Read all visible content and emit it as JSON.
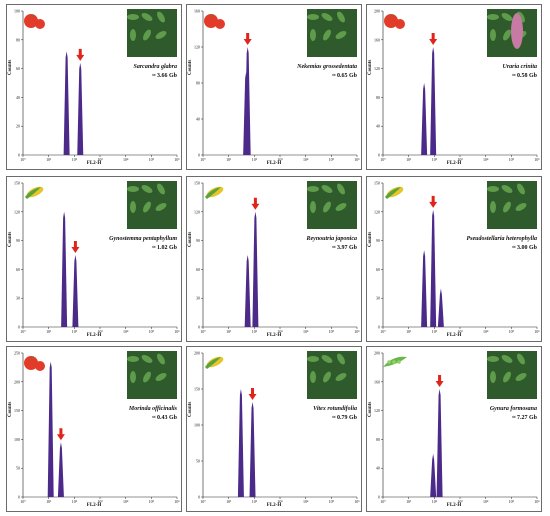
{
  "figure": {
    "panels": [
      {
        "species": "Sarcandra glabra",
        "size": "≈ 3.66 Gb",
        "crop_icon": "tomato-icon",
        "photo_icon": "leafy-plant-photo-icon",
        "y_ticks": [
          "0",
          "20",
          "40",
          "60",
          "80",
          "100"
        ],
        "x_ticks": [
          "10⁰",
          "10¹",
          "10²",
          "10³",
          "10⁴",
          "10⁵",
          "10⁶"
        ],
        "xlabel": "FL2-H",
        "ylabel": "Counts"
      },
      {
        "species": "Nekemias grossedentata",
        "size": "≈ 0.65 Gb",
        "crop_icon": "tomato-icon",
        "photo_icon": "leafy-plant-photo-icon",
        "y_ticks": [
          "0",
          "40",
          "80",
          "120",
          "160"
        ],
        "x_ticks": [
          "10⁰",
          "10¹",
          "10²",
          "10³",
          "10⁴",
          "10⁵",
          "10⁶"
        ],
        "xlabel": "FL2-H",
        "ylabel": "Counts"
      },
      {
        "species": "Uraria crinita",
        "size": "≈ 0.58 Gb",
        "crop_icon": "tomato-icon",
        "photo_icon": "flower-spike-photo-icon",
        "y_ticks": [
          "0",
          "40",
          "80",
          "120",
          "160",
          "200"
        ],
        "x_ticks": [
          "10⁰",
          "10¹",
          "10²",
          "10³",
          "10⁴",
          "10⁵",
          "10⁶"
        ],
        "xlabel": "FL2-H",
        "ylabel": "Counts"
      },
      {
        "species": "Gynostemma pentaphyllum",
        "size": "≈ 1.02 Gb",
        "crop_icon": "maize-icon",
        "photo_icon": "leafy-plant-photo-icon",
        "y_ticks": [
          "0",
          "30",
          "60",
          "90",
          "120",
          "150"
        ],
        "x_ticks": [
          "10⁰",
          "10¹",
          "10²",
          "10³",
          "10⁴",
          "10⁵",
          "10⁶"
        ],
        "xlabel": "FL2-H",
        "ylabel": "Counts"
      },
      {
        "species": "Reynoutria japonica",
        "size": "≈ 3.97 Gb",
        "crop_icon": "maize-icon",
        "photo_icon": "leafy-plant-photo-icon",
        "y_ticks": [
          "0",
          "30",
          "60",
          "90",
          "120",
          "150"
        ],
        "x_ticks": [
          "10⁰",
          "10¹",
          "10²",
          "10³",
          "10⁴",
          "10⁵",
          "10⁶"
        ],
        "xlabel": "FL2-H",
        "ylabel": "Counts"
      },
      {
        "species": "Pseudostellaria heterophylla",
        "size": "≈ 3.00 Gb",
        "crop_icon": "maize-icon",
        "photo_icon": "leafy-plant-photo-icon",
        "y_ticks": [
          "0",
          "30",
          "60",
          "90",
          "120",
          "150"
        ],
        "x_ticks": [
          "10⁰",
          "10¹",
          "10²",
          "10³",
          "10⁴",
          "10⁵",
          "10⁶"
        ],
        "xlabel": "FL2-H",
        "ylabel": "Counts"
      },
      {
        "species": "Morinda officinalis",
        "size": "≈ 0.43 Gb",
        "crop_icon": "tomato-icon",
        "photo_icon": "leafy-plant-photo-icon",
        "y_ticks": [
          "0",
          "50",
          "100",
          "150",
          "200",
          "250"
        ],
        "x_ticks": [
          "10⁰",
          "10¹",
          "10²",
          "10³",
          "10⁴",
          "10⁵",
          "10⁶"
        ],
        "xlabel": "FL2-H",
        "ylabel": "Counts"
      },
      {
        "species": "Vitex rotundifolia",
        "size": "≈ 0.79 Gb",
        "crop_icon": "maize-icon",
        "photo_icon": "leafy-plant-photo-icon",
        "y_ticks": [
          "0",
          "50",
          "100",
          "150",
          "200"
        ],
        "x_ticks": [
          "10⁰",
          "10¹",
          "10²",
          "10³",
          "10⁴",
          "10⁵",
          "10⁶"
        ],
        "xlabel": "FL2-H",
        "ylabel": "Counts"
      },
      {
        "species": "Gynura formosana",
        "size": "≈ 7.27 Gb",
        "crop_icon": "pea-pod-icon",
        "photo_icon": "leafy-plant-photo-icon",
        "y_ticks": [
          "0",
          "40",
          "80",
          "120",
          "160",
          "200"
        ],
        "x_ticks": [
          "10⁰",
          "10¹",
          "10²",
          "10³",
          "10⁴",
          "10⁵",
          "10⁶"
        ],
        "xlabel": "FL2-H",
        "ylabel": "Counts"
      }
    ],
    "colors": {
      "histogram": "#4b2a8a",
      "arrow": "#e0241b",
      "tomato": "#e23b2a",
      "maize": "#e7c62c",
      "pea": "#6bb64a"
    }
  },
  "chart_data": [
    {
      "type": "histogram",
      "title": "",
      "xlabel": "FL2-H",
      "ylabel": "Counts",
      "x_scale": "log",
      "xlim": [
        1,
        1000000
      ],
      "ylim": [
        0,
        100
      ],
      "peaks": [
        {
          "x": 50,
          "count": 72,
          "role": "reference"
        },
        {
          "x": 170,
          "count": 64,
          "role": "sample",
          "arrow": true
        }
      ]
    },
    {
      "type": "histogram",
      "title": "",
      "xlabel": "FL2-H",
      "ylabel": "Counts",
      "x_scale": "log",
      "xlim": [
        1,
        1000000
      ],
      "ylim": [
        0,
        160
      ],
      "peaks": [
        {
          "x": 55,
          "count": 120,
          "role": "sample",
          "arrow": true
        },
        {
          "x": 48,
          "count": 92,
          "role": "sample"
        }
      ]
    },
    {
      "type": "histogram",
      "title": "",
      "xlabel": "FL2-H",
      "ylabel": "Counts",
      "x_scale": "log",
      "xlim": [
        1,
        1000000
      ],
      "ylim": [
        0,
        200
      ],
      "peaks": [
        {
          "x": 40,
          "count": 100,
          "role": "reference"
        },
        {
          "x": 90,
          "count": 150,
          "role": "sample",
          "arrow": true
        }
      ]
    },
    {
      "type": "histogram",
      "title": "",
      "xlabel": "FL2-H",
      "ylabel": "Counts",
      "x_scale": "log",
      "xlim": [
        1,
        1000000
      ],
      "ylim": [
        0,
        150
      ],
      "peaks": [
        {
          "x": 40,
          "count": 120,
          "role": "reference"
        },
        {
          "x": 110,
          "count": 75,
          "role": "sample",
          "arrow": true
        }
      ]
    },
    {
      "type": "histogram",
      "title": "",
      "xlabel": "FL2-H",
      "ylabel": "Counts",
      "x_scale": "log",
      "xlim": [
        1,
        1000000
      ],
      "ylim": [
        0,
        150
      ],
      "peaks": [
        {
          "x": 55,
          "count": 75,
          "role": "reference"
        },
        {
          "x": 110,
          "count": 120,
          "role": "sample",
          "arrow": true
        }
      ]
    },
    {
      "type": "histogram",
      "title": "",
      "xlabel": "FL2-H",
      "ylabel": "Counts",
      "x_scale": "log",
      "xlim": [
        1,
        1000000
      ],
      "ylim": [
        0,
        150
      ],
      "peaks": [
        {
          "x": 40,
          "count": 80,
          "role": "reference"
        },
        {
          "x": 90,
          "count": 122,
          "role": "sample",
          "arrow": true
        },
        {
          "x": 180,
          "count": 40,
          "role": "sample"
        }
      ]
    },
    {
      "type": "histogram",
      "title": "",
      "xlabel": "FL2-H",
      "ylabel": "Counts",
      "x_scale": "log",
      "xlim": [
        1,
        1000000
      ],
      "ylim": [
        0,
        250
      ],
      "peaks": [
        {
          "x": 12,
          "count": 235,
          "role": "reference"
        },
        {
          "x": 30,
          "count": 95,
          "role": "sample",
          "arrow": true
        }
      ]
    },
    {
      "type": "histogram",
      "title": "",
      "xlabel": "FL2-H",
      "ylabel": "Counts",
      "x_scale": "log",
      "xlim": [
        1,
        1000000
      ],
      "ylim": [
        0,
        200
      ],
      "peaks": [
        {
          "x": 30,
          "count": 150,
          "role": "reference"
        },
        {
          "x": 85,
          "count": 132,
          "role": "sample",
          "arrow": true
        }
      ]
    },
    {
      "type": "histogram",
      "title": "",
      "xlabel": "FL2-H",
      "ylabel": "Counts",
      "x_scale": "log",
      "xlim": [
        1,
        1000000
      ],
      "ylim": [
        0,
        200
      ],
      "peaks": [
        {
          "x": 160,
          "count": 150,
          "role": "sample",
          "arrow": true
        },
        {
          "x": 90,
          "count": 60,
          "role": "sample"
        }
      ]
    }
  ]
}
